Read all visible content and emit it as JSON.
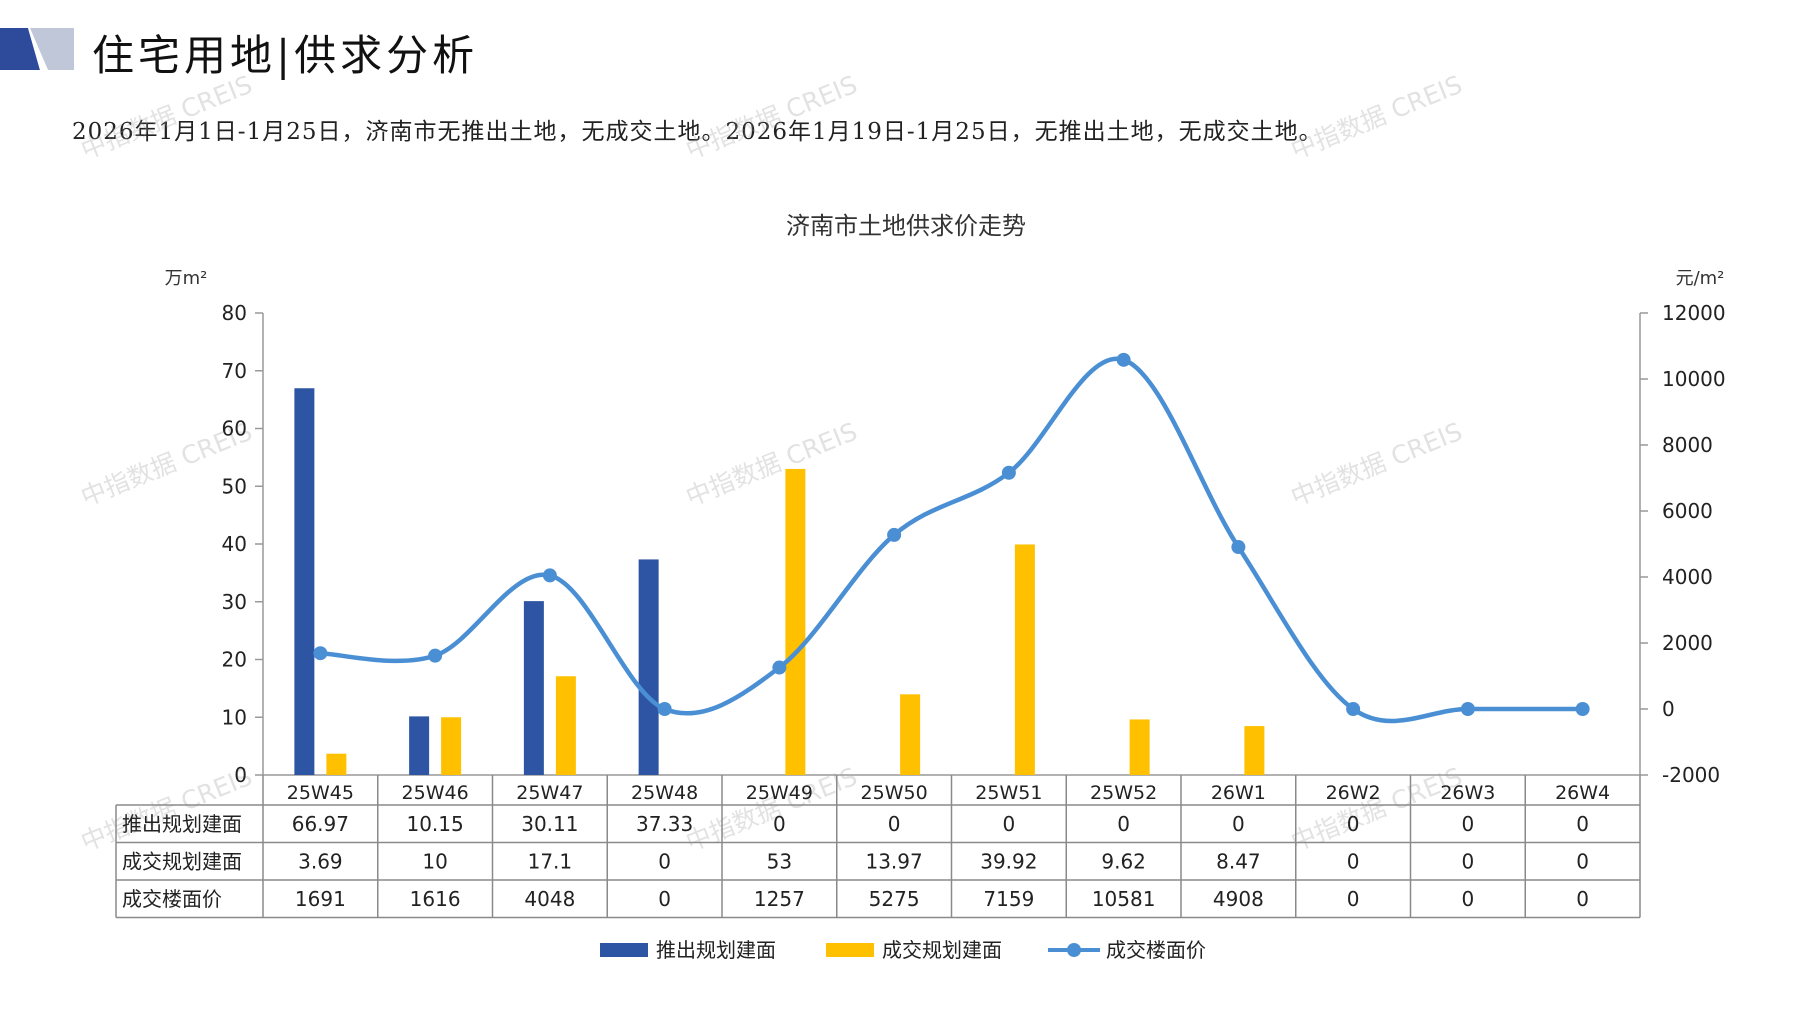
{
  "page": {
    "title": "住宅用地|供求分析",
    "summary": "2026年1月1日-1月25日，济南市无推出土地，无成交土地。2026年1月19日-1月25日，无推出土地，无成交土地。",
    "watermark": "中指数据 CREIS"
  },
  "colors": {
    "supply": "#2E55A3",
    "deal": "#FFC000",
    "price": "#4A8FD4",
    "axis": "#999999",
    "header_dark": "#2E4A9A",
    "header_light": "#BFC7D8"
  },
  "chart_data": {
    "type": "bar",
    "title": "济南市土地供求价走势",
    "ylabel_left": "万m²",
    "ylabel_right": "元/m²",
    "ylim_left": [
      0,
      80
    ],
    "yticks_left": [
      "0",
      "10",
      "20",
      "30",
      "40",
      "50",
      "60",
      "70",
      "80"
    ],
    "ylim_right": [
      -2000,
      12000
    ],
    "yticks_right": [
      "-2000",
      "0",
      "2000",
      "4000",
      "6000",
      "8000",
      "10000",
      "12000"
    ],
    "categories": [
      "25W45",
      "25W46",
      "25W47",
      "25W48",
      "25W49",
      "25W50",
      "25W51",
      "25W52",
      "26W1",
      "26W2",
      "26W3",
      "26W4"
    ],
    "series": [
      {
        "name": "推出规划建面",
        "type": "bar",
        "axis": "left",
        "values": [
          66.97,
          10.15,
          30.11,
          37.33,
          0,
          0,
          0,
          0,
          0,
          0,
          0,
          0
        ],
        "labels": [
          "66.97",
          "10.15",
          "30.11",
          "37.33",
          "0",
          "0",
          "0",
          "0",
          "0",
          "0",
          "0",
          "0"
        ]
      },
      {
        "name": "成交规划建面",
        "type": "bar",
        "axis": "left",
        "values": [
          3.69,
          10,
          17.1,
          0,
          53,
          13.97,
          39.92,
          9.62,
          8.47,
          0,
          0,
          0
        ],
        "labels": [
          "3.69",
          "10",
          "17.1",
          "0",
          "53",
          "13.97",
          "39.92",
          "9.62",
          "8.47",
          "0",
          "0",
          "0"
        ]
      },
      {
        "name": "成交楼面价",
        "type": "line",
        "axis": "right",
        "values": [
          1691,
          1616,
          4048,
          0,
          1257,
          5275,
          7159,
          10581,
          4908,
          0,
          0,
          0
        ],
        "labels": [
          "1691",
          "1616",
          "4048",
          "0",
          "1257",
          "5275",
          "7159",
          "10581",
          "4908",
          "0",
          "0",
          "0"
        ]
      }
    ],
    "legend_position": "bottom",
    "grid": false,
    "data_table": true
  }
}
